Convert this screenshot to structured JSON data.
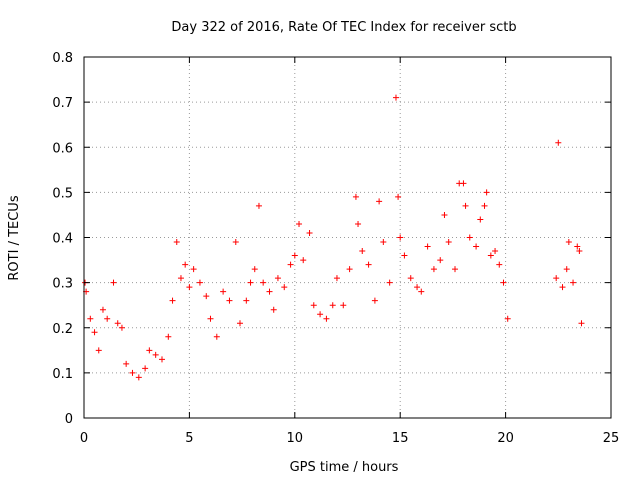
{
  "chart_data": {
    "type": "scatter",
    "title": "Day 322 of 2016, Rate Of TEC Index for receiver sctb",
    "xlabel": "GPS time / hours",
    "ylabel": "ROTI / TECUs",
    "xlim": [
      0,
      25
    ],
    "ylim": [
      0,
      0.8
    ],
    "xticks": [
      0,
      5,
      10,
      15,
      20,
      25
    ],
    "yticks": [
      0,
      0.1,
      0.2,
      0.3,
      0.4,
      0.5,
      0.6,
      0.7,
      0.8
    ],
    "xtick_labels": [
      "0",
      "5",
      "10",
      "15",
      "20",
      "25"
    ],
    "ytick_labels": [
      "0",
      "0.1",
      "0.2",
      "0.3",
      "0.4",
      "0.5",
      "0.6",
      "0.7",
      "0.8"
    ],
    "grid": true,
    "marker": "+",
    "color": "#ff0000",
    "series": [
      {
        "points": [
          [
            0.05,
            0.3
          ],
          [
            0.1,
            0.28
          ],
          [
            0.3,
            0.22
          ],
          [
            0.5,
            0.19
          ],
          [
            0.7,
            0.15
          ],
          [
            0.9,
            0.24
          ],
          [
            1.1,
            0.22
          ],
          [
            1.4,
            0.3
          ],
          [
            1.6,
            0.21
          ],
          [
            1.8,
            0.2
          ],
          [
            2.0,
            0.12
          ],
          [
            2.3,
            0.1
          ],
          [
            2.6,
            0.09
          ],
          [
            2.9,
            0.11
          ],
          [
            3.1,
            0.15
          ],
          [
            3.4,
            0.14
          ],
          [
            3.7,
            0.13
          ],
          [
            4.0,
            0.18
          ],
          [
            4.2,
            0.26
          ],
          [
            4.4,
            0.39
          ],
          [
            4.6,
            0.31
          ],
          [
            4.8,
            0.34
          ],
          [
            5.0,
            0.29
          ],
          [
            5.2,
            0.33
          ],
          [
            5.5,
            0.3
          ],
          [
            5.8,
            0.27
          ],
          [
            6.0,
            0.22
          ],
          [
            6.3,
            0.18
          ],
          [
            6.6,
            0.28
          ],
          [
            6.9,
            0.26
          ],
          [
            7.2,
            0.39
          ],
          [
            7.4,
            0.21
          ],
          [
            7.7,
            0.26
          ],
          [
            7.9,
            0.3
          ],
          [
            8.1,
            0.33
          ],
          [
            8.3,
            0.47
          ],
          [
            8.5,
            0.3
          ],
          [
            8.8,
            0.28
          ],
          [
            9.0,
            0.24
          ],
          [
            9.2,
            0.31
          ],
          [
            9.5,
            0.29
          ],
          [
            9.8,
            0.34
          ],
          [
            10.0,
            0.36
          ],
          [
            10.2,
            0.43
          ],
          [
            10.4,
            0.35
          ],
          [
            10.7,
            0.41
          ],
          [
            10.9,
            0.25
          ],
          [
            11.2,
            0.23
          ],
          [
            11.5,
            0.22
          ],
          [
            11.8,
            0.25
          ],
          [
            12.0,
            0.31
          ],
          [
            12.3,
            0.25
          ],
          [
            12.6,
            0.33
          ],
          [
            12.9,
            0.49
          ],
          [
            13.0,
            0.43
          ],
          [
            13.2,
            0.37
          ],
          [
            13.5,
            0.34
          ],
          [
            13.8,
            0.26
          ],
          [
            14.0,
            0.48
          ],
          [
            14.2,
            0.39
          ],
          [
            14.5,
            0.3
          ],
          [
            14.8,
            0.71
          ],
          [
            14.9,
            0.49
          ],
          [
            15.0,
            0.4
          ],
          [
            15.2,
            0.36
          ],
          [
            15.5,
            0.31
          ],
          [
            15.8,
            0.29
          ],
          [
            16.0,
            0.28
          ],
          [
            16.3,
            0.38
          ],
          [
            16.6,
            0.33
          ],
          [
            16.9,
            0.35
          ],
          [
            17.1,
            0.45
          ],
          [
            17.3,
            0.39
          ],
          [
            17.6,
            0.33
          ],
          [
            17.8,
            0.52
          ],
          [
            18.0,
            0.52
          ],
          [
            18.1,
            0.47
          ],
          [
            18.3,
            0.4
          ],
          [
            18.6,
            0.38
          ],
          [
            18.8,
            0.44
          ],
          [
            19.0,
            0.47
          ],
          [
            19.1,
            0.5
          ],
          [
            19.3,
            0.36
          ],
          [
            19.5,
            0.37
          ],
          [
            19.7,
            0.34
          ],
          [
            19.9,
            0.3
          ],
          [
            20.1,
            0.22
          ],
          [
            22.4,
            0.31
          ],
          [
            22.5,
            0.61
          ],
          [
            22.7,
            0.29
          ],
          [
            22.9,
            0.33
          ],
          [
            23.0,
            0.39
          ],
          [
            23.2,
            0.3
          ],
          [
            23.4,
            0.38
          ],
          [
            23.5,
            0.37
          ],
          [
            23.6,
            0.21
          ]
        ]
      }
    ]
  }
}
